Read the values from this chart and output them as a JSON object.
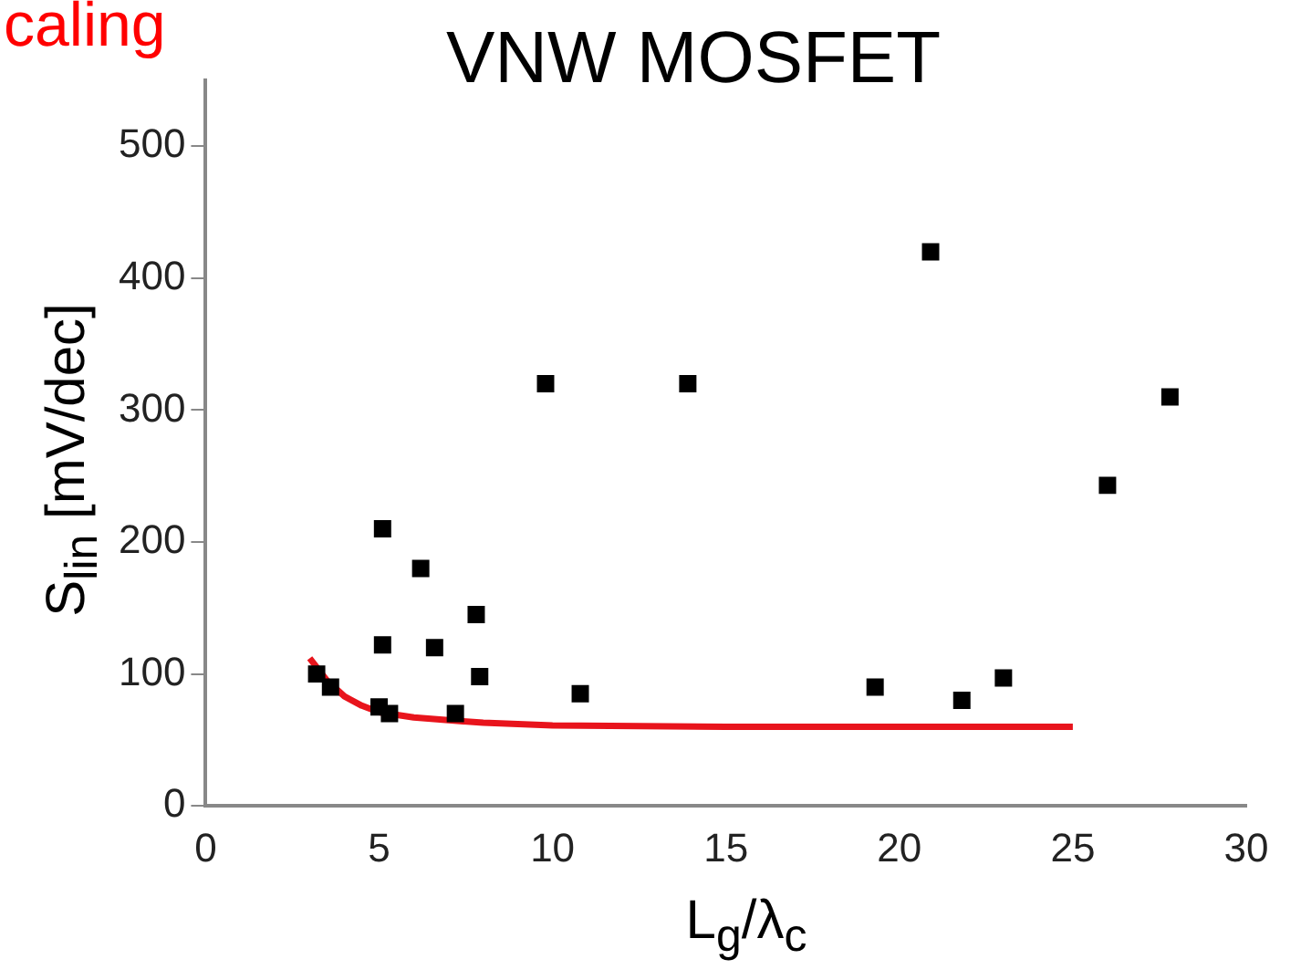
{
  "chart_data": {
    "type": "scatter",
    "title": "VNW MOSFET",
    "xlabel": "L$_{g}$/λ$_{c}$",
    "ylabel": "S$_{lin}$ [mV/dec]",
    "annotations": [
      "caling"
    ],
    "xlim": [
      0,
      30
    ],
    "xticks": [
      0,
      5,
      10,
      15,
      20,
      25,
      30
    ],
    "ylim": [
      0,
      550
    ],
    "yticks": [
      0,
      100,
      200,
      300,
      400,
      500
    ],
    "grid": false,
    "legend": false,
    "series": [
      {
        "type": "scatter",
        "color": "#000000",
        "marker": "square",
        "x": [
          3.2,
          3.6,
          5.1,
          5.1,
          5.0,
          5.3,
          6.2,
          6.6,
          7.2,
          7.8,
          7.9,
          10.8,
          9.8,
          13.9,
          19.3,
          20.9,
          21.8,
          23.0,
          26.0,
          27.8
        ],
        "values": [
          100,
          90,
          210,
          122,
          75,
          70,
          180,
          120,
          70,
          145,
          98,
          85,
          320,
          320,
          90,
          420,
          80,
          97,
          243,
          310
        ]
      },
      {
        "type": "line",
        "color": "#e8141c",
        "marker": "none",
        "line_style": "solid",
        "x": [
          3,
          3.5,
          4,
          4.5,
          5,
          6,
          7,
          8,
          10,
          15,
          20,
          25
        ],
        "values": [
          112,
          95,
          83,
          76,
          71,
          67,
          65,
          63,
          61,
          60,
          60,
          60
        ]
      }
    ]
  }
}
